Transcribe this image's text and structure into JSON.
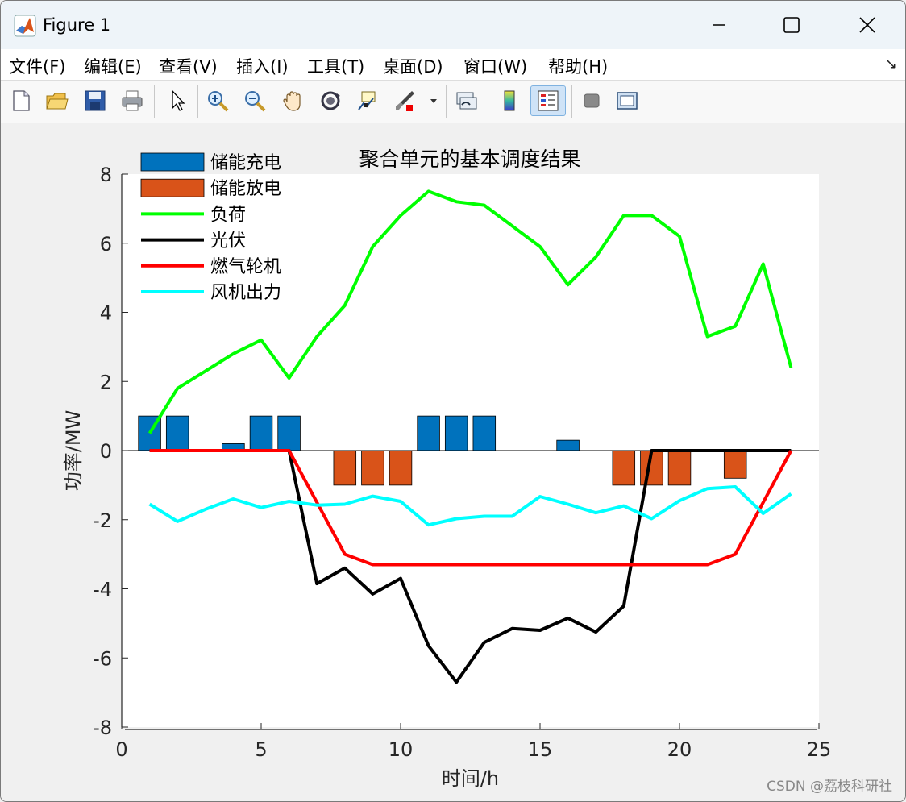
{
  "window": {
    "title": "Figure 1",
    "min_icon": "minimize-icon",
    "max_icon": "maximize-icon",
    "close_icon": "close-icon"
  },
  "menu": [
    {
      "label": "文件(F)",
      "icon": ""
    },
    {
      "label": "编辑(E)",
      "icon": ""
    },
    {
      "label": "查看(V)",
      "icon": ""
    },
    {
      "label": "插入(I)",
      "icon": ""
    },
    {
      "label": "工具(T)",
      "icon": ""
    },
    {
      "label": "桌面(D)",
      "icon": ""
    },
    {
      "label": "窗口(W)",
      "icon": ""
    },
    {
      "label": "帮助(H)",
      "icon": ""
    }
  ],
  "menu_more": "↘",
  "toolbar": [
    "new-figure-icon",
    "open-file-icon",
    "save-icon",
    "print-icon",
    "pointer-icon",
    "zoom-in-icon",
    "zoom-out-icon",
    "pan-icon",
    "rotate-3d-icon",
    "data-cursor-icon",
    "brush-icon",
    "link-plot-icon",
    "insert-colorbar-icon",
    "insert-legend-icon",
    "hide-plot-tools-icon",
    "show-plot-tools-icon"
  ],
  "watermark": "CSDN @荔枝科研社",
  "chart_data": {
    "type": "bar+line",
    "title": "聚合单元的基本调度结果",
    "xlabel": "时间/h",
    "ylabel": "功率/MW",
    "xlim": [
      0,
      25
    ],
    "ylim": [
      -8,
      8
    ],
    "xticks": [
      "0",
      "5",
      "10",
      "15",
      "20",
      "25"
    ],
    "yticks": [
      "8",
      "6",
      "4",
      "2",
      "0",
      "-2",
      "-4",
      "-6",
      "-8"
    ],
    "grid": false,
    "legend_position": "top-left",
    "x": [
      1,
      2,
      3,
      4,
      5,
      6,
      7,
      8,
      9,
      10,
      11,
      12,
      13,
      14,
      15,
      16,
      17,
      18,
      19,
      20,
      21,
      22,
      23,
      24
    ],
    "series": [
      {
        "name": "储能充电",
        "kind": "bar",
        "color": "#0072BD",
        "values": [
          1,
          1,
          0,
          0.2,
          1,
          1,
          0,
          0,
          0,
          0,
          1,
          1,
          1,
          0,
          0,
          0.3,
          0,
          0,
          0,
          0,
          0,
          0,
          0,
          0
        ]
      },
      {
        "name": "储能放电",
        "kind": "bar",
        "color": "#D95319",
        "values": [
          0,
          0,
          0,
          0,
          0,
          0,
          0,
          -1,
          -1,
          -1,
          0,
          0,
          0,
          0,
          0,
          0,
          0,
          -1,
          -1,
          -1,
          0,
          -0.8,
          0,
          0
        ]
      },
      {
        "name": "负荷",
        "kind": "line",
        "color": "#00FF00",
        "values": [
          0.5,
          1.8,
          2.3,
          2.8,
          3.2,
          2.1,
          3.3,
          4.2,
          5.9,
          6.8,
          7.5,
          7.2,
          7.1,
          6.5,
          5.9,
          4.8,
          5.6,
          6.8,
          6.8,
          6.2,
          3.3,
          3.6,
          5.4,
          2.4
        ]
      },
      {
        "name": "光伏",
        "kind": "line",
        "color": "#000000",
        "values": [
          0,
          0,
          0,
          0,
          0,
          0,
          -3.85,
          -3.4,
          -4.15,
          -3.7,
          -5.65,
          -6.7,
          -5.55,
          -5.15,
          -5.2,
          -4.85,
          -5.25,
          -4.5,
          0,
          0,
          0,
          0,
          0,
          0
        ]
      },
      {
        "name": "燃气轮机",
        "kind": "line",
        "color": "#FF0000",
        "values": [
          0,
          0,
          0,
          0,
          0,
          0,
          -1.5,
          -3.0,
          -3.3,
          -3.3,
          -3.3,
          -3.3,
          -3.3,
          -3.3,
          -3.3,
          -3.3,
          -3.3,
          -3.3,
          -3.3,
          -3.3,
          -3.3,
          -3.0,
          -1.5,
          0
        ]
      },
      {
        "name": "风机出力",
        "kind": "line",
        "color": "#00FFFF",
        "values": [
          -1.55,
          -2.05,
          -1.7,
          -1.4,
          -1.65,
          -1.47,
          -1.58,
          -1.55,
          -1.32,
          -1.47,
          -2.15,
          -1.97,
          -1.9,
          -1.9,
          -1.33,
          -1.55,
          -1.8,
          -1.6,
          -1.97,
          -1.45,
          -1.1,
          -1.05,
          -1.82,
          -1.25
        ]
      }
    ]
  }
}
